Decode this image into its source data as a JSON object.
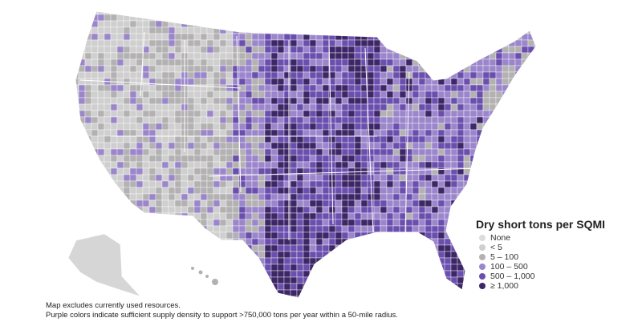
{
  "legend": {
    "title": "Dry short tons per SQMI",
    "items": [
      {
        "label": "None",
        "color": "#dcdcdc"
      },
      {
        "label": "< 5",
        "color": "#cfcfcf"
      },
      {
        "label": "5 – 100",
        "color": "#b3b1b1"
      },
      {
        "label": "100 – 500",
        "color": "#9b86cc"
      },
      {
        "label": "500 – 1,000",
        "color": "#6b4fae"
      },
      {
        "label": "≥ 1,000",
        "color": "#3d2766"
      }
    ]
  },
  "notes": {
    "line1": "Map excludes currently used resources.",
    "line2": "Purple colors indicate sufficient supply density to support >750,000 tons per year within a 50-mile radius."
  }
}
